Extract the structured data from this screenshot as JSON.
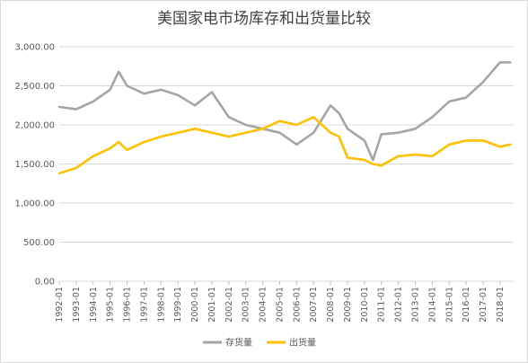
{
  "chart_data": {
    "type": "line",
    "title": "美国家电市场库存和出货量比较",
    "xlabel": "",
    "ylabel": "",
    "ylim": [
      0,
      3000
    ],
    "yticks": [
      0,
      500,
      1000,
      1500,
      2000,
      2500,
      3000
    ],
    "ytick_labels": [
      "0.00",
      "500.00",
      "1,000.00",
      "1,500.00",
      "2,000.00",
      "2,500.00",
      "3,000.00"
    ],
    "xtick_labels": [
      "1992-01",
      "1993-01",
      "1994-01",
      "1995-01",
      "1996-01",
      "1997-01",
      "1998-01",
      "1999-01",
      "2000-01",
      "2001-01",
      "2002-01",
      "2003-01",
      "2004-01",
      "2005-01",
      "2006-01",
      "2007-01",
      "2008-01",
      "2009-01",
      "2010-01",
      "2011-01",
      "2012-01",
      "2013-01",
      "2014-01",
      "2015-01",
      "2016-01",
      "2017-01",
      "2018-01"
    ],
    "x": [
      1992.0,
      1993.0,
      1994.0,
      1995.0,
      1995.5,
      1996.0,
      1997.0,
      1998.0,
      1999.0,
      2000.0,
      2001.0,
      2002.0,
      2003.0,
      2004.0,
      2005.0,
      2006.0,
      2007.0,
      2008.0,
      2008.5,
      2009.0,
      2010.0,
      2010.5,
      2011.0,
      2012.0,
      2013.0,
      2014.0,
      2015.0,
      2016.0,
      2017.0,
      2018.0,
      2018.6
    ],
    "series": [
      {
        "name": "存货量",
        "color": "#a5a5a5",
        "values": [
          2230,
          2200,
          2300,
          2450,
          2680,
          2500,
          2400,
          2450,
          2380,
          2250,
          2420,
          2100,
          2000,
          1950,
          1900,
          1750,
          1900,
          2250,
          2150,
          1950,
          1800,
          1550,
          1880,
          1900,
          1950,
          2100,
          2300,
          2350,
          2550,
          2800,
          2800
        ]
      },
      {
        "name": "出货量",
        "color": "#ffc000",
        "values": [
          1380,
          1450,
          1600,
          1700,
          1780,
          1680,
          1780,
          1850,
          1900,
          1950,
          1900,
          1850,
          1900,
          1950,
          2050,
          2000,
          2100,
          1900,
          1850,
          1580,
          1550,
          1500,
          1480,
          1600,
          1620,
          1600,
          1750,
          1800,
          1800,
          1720,
          1750
        ]
      }
    ],
    "legend": "bottom",
    "grid": true
  }
}
